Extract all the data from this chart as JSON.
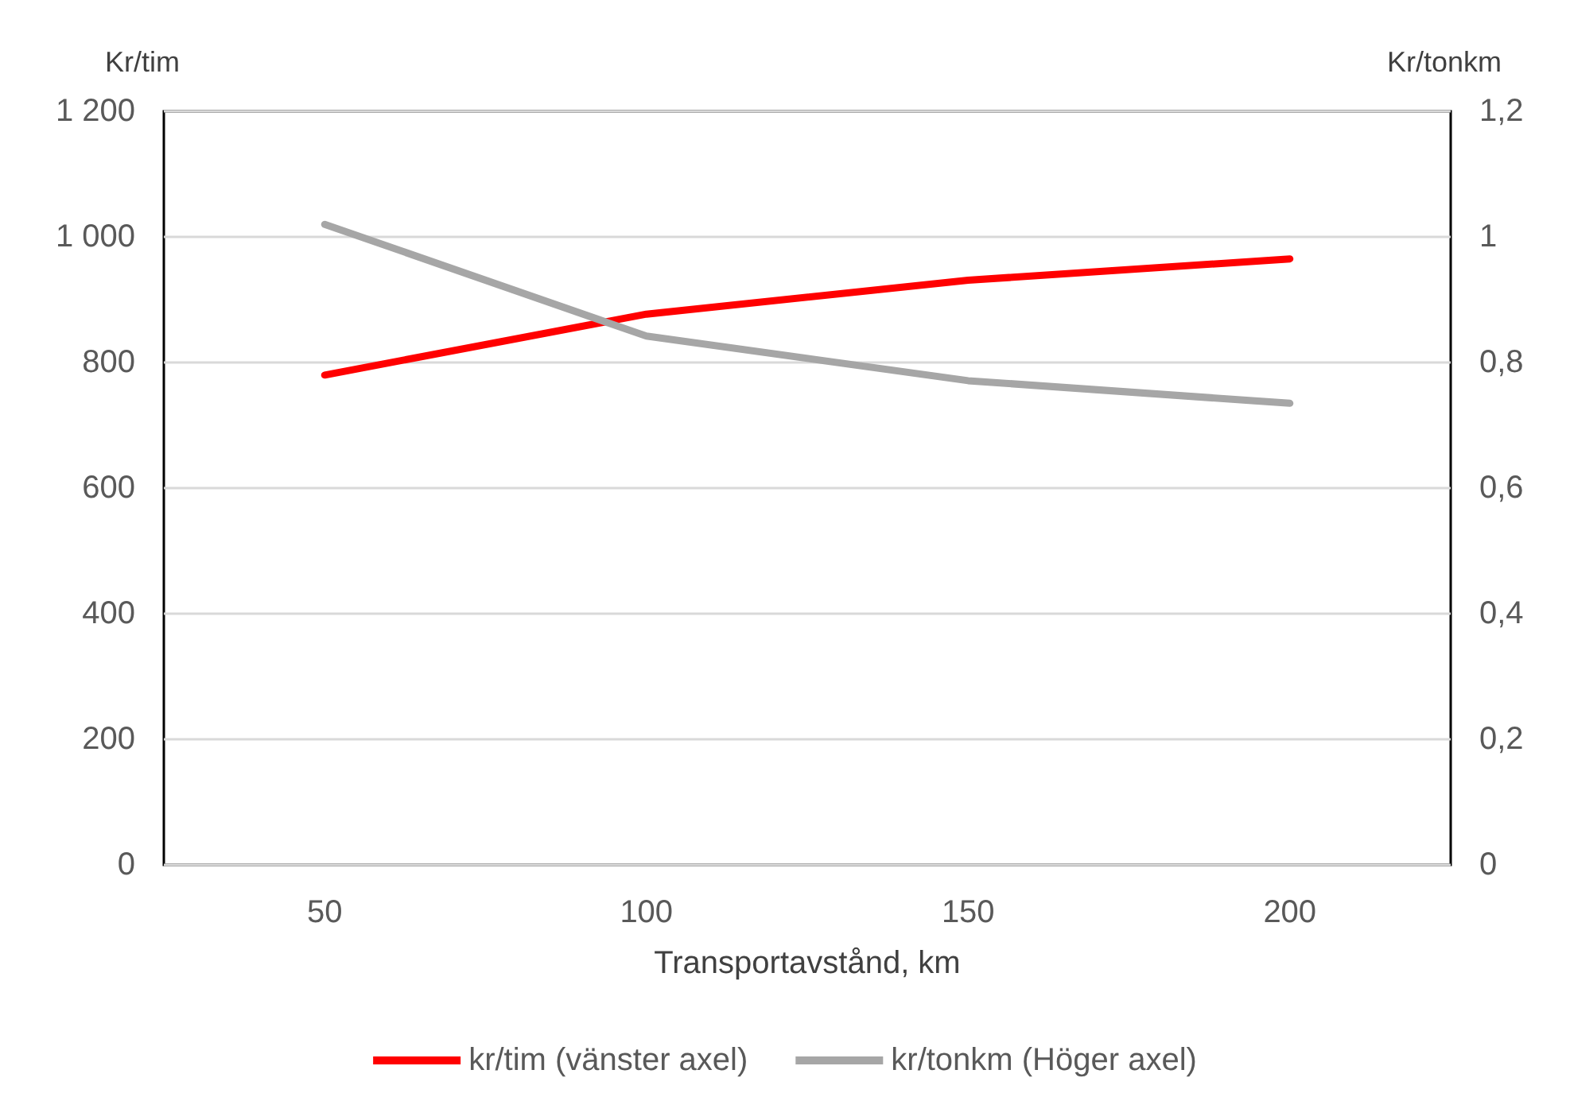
{
  "chart_data": {
    "type": "line",
    "xlabel": "Transportavstånd, km",
    "ylabel": "Kr/tim",
    "y2label": "Kr/tonkm",
    "categories": [
      "50",
      "100",
      "150",
      "200"
    ],
    "series": [
      {
        "name": "kr/tim (vänster axel)",
        "color": "#ff0000",
        "values": [
          780,
          877,
          931,
          965
        ]
      },
      {
        "name": "kr/tonkm (Höger axel)",
        "color": "#a6a6a6",
        "values": [
          1.02,
          0.842,
          0.771,
          0.735
        ],
        "axis": "y2"
      }
    ],
    "ylim": [
      0,
      1200
    ],
    "yticks": [
      0,
      200,
      400,
      600,
      800,
      {
        "value": 1000,
        "label": "1 000"
      },
      {
        "value": 1200,
        "label": "1 200"
      }
    ],
    "y2lim": [
      0,
      1.2
    ],
    "y2ticks": [
      0,
      {
        "value": 0.2,
        "label": "0,2"
      },
      {
        "value": 0.4,
        "label": "0,4"
      },
      {
        "value": 0.6,
        "label": "0,6"
      },
      {
        "value": 0.8,
        "label": "0,8"
      },
      1,
      {
        "value": 1.2,
        "label": "1,2"
      }
    ],
    "grid": "y",
    "legend": "bottom",
    "marker": "none",
    "line_style": "solid"
  }
}
